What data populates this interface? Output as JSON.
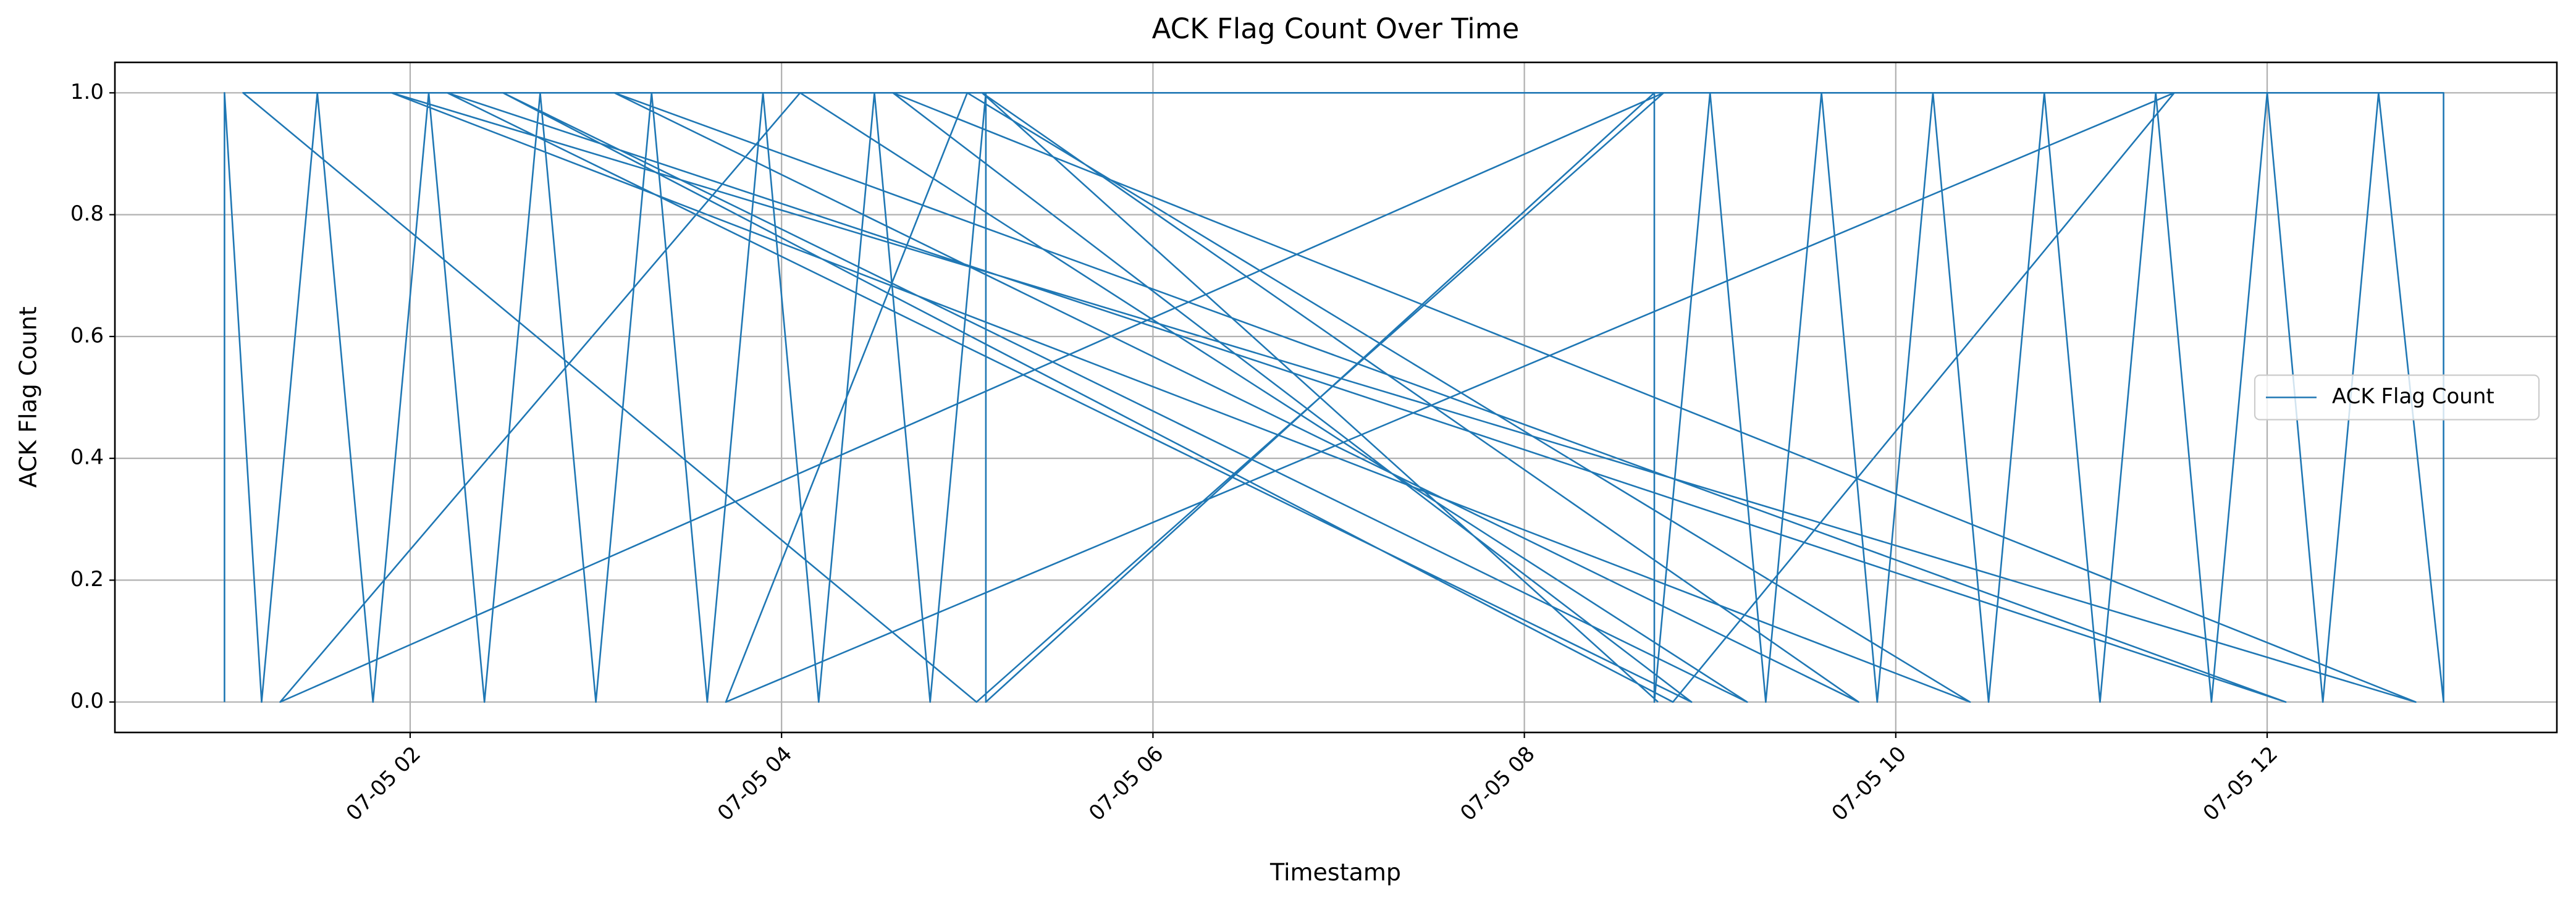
{
  "chart_data": {
    "type": "line",
    "title": "ACK Flag Count Over Time",
    "x_label": "Timestamp",
    "y_label": "ACK Flag Count",
    "x": [
      1.0,
      1.0,
      1.2,
      1.5,
      1.8,
      2.1,
      2.4,
      2.7,
      3.0,
      3.3,
      3.6,
      3.9,
      4.2,
      4.5,
      4.8,
      5.1,
      5.1,
      8.7,
      8.7,
      9.0,
      9.3,
      9.6,
      9.9,
      10.2,
      10.5,
      10.8,
      11.1,
      11.4,
      11.7,
      12.0,
      12.3,
      12.6,
      12.95,
      12.95,
      1.1,
      5.05,
      8.75,
      1.3,
      4.1,
      9.2,
      2.5,
      8.8,
      11.5,
      3.7,
      5.0,
      10.4,
      1.9,
      12.8,
      4.6,
      8.9,
      2.2,
      12.1,
      3.1,
      9.8,
      5.08,
      8.72
    ],
    "series": [
      {
        "name": "ACK Flag Count",
        "color": "#1f77b4",
        "values": [
          0,
          1,
          0,
          1,
          0,
          1,
          0,
          1,
          0,
          1,
          0,
          1,
          0,
          1,
          0,
          1,
          0,
          1,
          0,
          1,
          0,
          1,
          0,
          1,
          0,
          1,
          0,
          1,
          0,
          1,
          0,
          1,
          0,
          1,
          1,
          0,
          1,
          0,
          1,
          0,
          1,
          0,
          1,
          0,
          1,
          0,
          1,
          0,
          1,
          0,
          1,
          0,
          1,
          0,
          1,
          0
        ]
      }
    ],
    "xlim": [
      0.41,
      13.56
    ],
    "xticks": [
      {
        "value": 2,
        "label": "07-05 02"
      },
      {
        "value": 4,
        "label": "07-05 04"
      },
      {
        "value": 6,
        "label": "07-05 06"
      },
      {
        "value": 8,
        "label": "07-05 08"
      },
      {
        "value": 10,
        "label": "07-05 10"
      },
      {
        "value": 12,
        "label": "07-05 12"
      }
    ],
    "ylim": [
      -0.05,
      1.05
    ],
    "yticks": [
      {
        "value": 0,
        "label": "0.0"
      },
      {
        "value": 0.2,
        "label": "0.2"
      },
      {
        "value": 0.4,
        "label": "0.4"
      },
      {
        "value": 0.6,
        "label": "0.6"
      },
      {
        "value": 0.8,
        "label": "0.8"
      },
      {
        "value": 1,
        "label": "1.0"
      }
    ],
    "grid": true,
    "legend": "center right"
  }
}
